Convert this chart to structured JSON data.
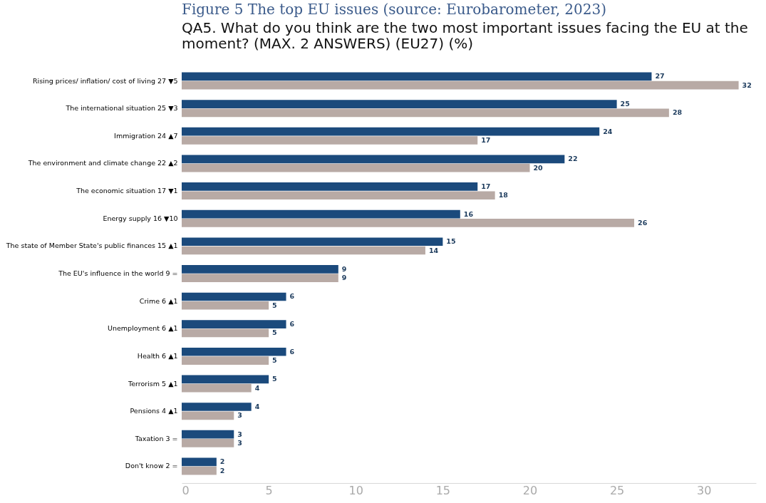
{
  "chart_data": {
    "type": "bar",
    "orientation": "horizontal",
    "title": "Figure 5 The top EU issues (source: Eurobarometer, 2023)",
    "subtitle": "QA5. What do you think are the two most important issues facing the EU at the moment? (MAX. 2 ANSWERS) (EU27) (%)",
    "categories": [
      "Rising prices/ inflation/ cost of living 27 ▼5",
      "The international situation 25 ▼3",
      "Immigration 24 ▲7",
      "The environment and climate change 22 ▲2",
      "The economic situation 17 ▼1",
      "Energy supply 16 ▼10",
      "The state of Member State's public finances 15 ▲1",
      "The EU's influence in the world 9 =",
      "Crime 6 ▲1",
      "Unemployment 6 ▲1",
      "Health 6 ▲1",
      "Terrorism 5 ▲1",
      "Pensions 4 ▲1",
      "Taxation 3 =",
      "Don't know 2 ="
    ],
    "series": [
      {
        "color": "#1b4a7c",
        "values": [
          27,
          25,
          24,
          22,
          17,
          16,
          15,
          9,
          6,
          6,
          6,
          5,
          4,
          3,
          2
        ]
      },
      {
        "color": "#b8aaa5",
        "values": [
          32,
          28,
          17,
          20,
          18,
          26,
          14,
          9,
          5,
          5,
          5,
          4,
          3,
          3,
          2
        ]
      }
    ],
    "xlim": [
      0,
      33
    ],
    "xticks": [
      0,
      5,
      10,
      15,
      20,
      25,
      30
    ],
    "grid": false,
    "data_labels": true
  }
}
